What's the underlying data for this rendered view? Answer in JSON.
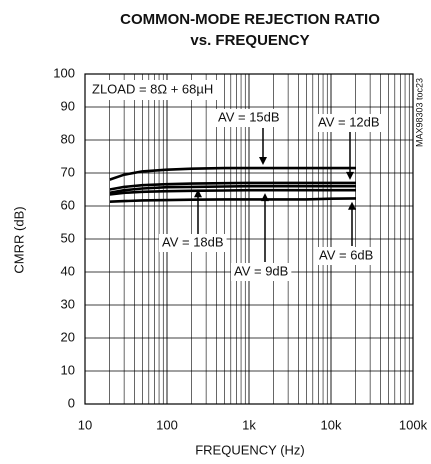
{
  "chart_data": {
    "type": "line",
    "title": "COMMON-MODE REJECTION RATIO",
    "subtitle": "vs. FREQUENCY",
    "x_label": "FREQUENCY (Hz)",
    "y_label": "CMRR (dB)",
    "annotation": "ZLOAD = 8Ω + 68µH",
    "side_note": "MAX98303 toc23",
    "log_x": true,
    "grid": true,
    "x": [
      20,
      30,
      50,
      100,
      200,
      500,
      1000,
      2000,
      5000,
      10000,
      20000
    ],
    "series": [
      {
        "name": "AV = 15dB",
        "color": "#000000",
        "values": [
          68,
          69.5,
          70.5,
          71,
          71.3,
          71.5,
          71.5,
          71.5,
          71.5,
          71.5,
          71.5
        ]
      },
      {
        "name": "AV = 12dB",
        "color": "#000000",
        "values": [
          65,
          65.8,
          66.3,
          66.6,
          66.8,
          66.9,
          67,
          67,
          67,
          67,
          67
        ]
      },
      {
        "name": "AV = 18dB",
        "color": "#000000",
        "values": [
          64,
          64.8,
          65.3,
          65.7,
          65.8,
          65.9,
          66,
          66,
          66,
          66,
          66
        ]
      },
      {
        "name": "AV = 9dB",
        "color": "#000000",
        "values": [
          63.5,
          64,
          64.3,
          64.5,
          64.6,
          64.7,
          64.8,
          64.8,
          64.8,
          64.8,
          64.8
        ]
      },
      {
        "name": "AV = 6dB",
        "color": "#000000",
        "values": [
          61.3,
          61.5,
          61.7,
          61.8,
          61.9,
          62,
          62,
          62,
          62,
          62.2,
          62.3
        ]
      }
    ],
    "xlim": [
      10,
      100000
    ],
    "xticks": [
      10,
      100,
      {
        "value": 1000,
        "label": "1k"
      },
      {
        "value": 10000,
        "label": "10k"
      },
      {
        "value": 100000,
        "label": "100k"
      }
    ],
    "ylim": [
      0,
      100
    ],
    "yticks": [
      0,
      10,
      20,
      30,
      40,
      50,
      60,
      70,
      80,
      90,
      100
    ]
  }
}
